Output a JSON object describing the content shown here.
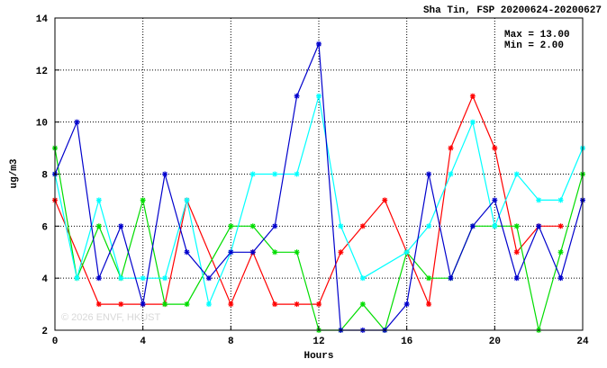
{
  "chart_data": {
    "type": "line",
    "title": "Sha Tin, FSP 20200624-20200627",
    "xlabel": "Hours",
    "ylabel": "ug/m3",
    "xlim": [
      0,
      24
    ],
    "ylim": [
      2,
      14
    ],
    "xticks": [
      0,
      4,
      8,
      12,
      16,
      20,
      24
    ],
    "yticks": [
      2,
      4,
      6,
      8,
      10,
      12,
      14
    ],
    "grid": true,
    "annotations": {
      "max": "Max = 13.00",
      "min": "Min =  2.00"
    },
    "watermark": "© 2026  ENVF, HKUST",
    "series": [
      {
        "color": "#ff0000",
        "x": [
          0,
          2,
          3,
          4,
          5,
          6,
          8,
          9,
          10,
          11,
          12,
          13,
          14,
          15,
          16,
          17,
          18,
          19,
          20,
          21,
          22,
          23
        ],
        "values": [
          7,
          3,
          3,
          3,
          3,
          7,
          3,
          5,
          3,
          3,
          3,
          5,
          6,
          7,
          5,
          3,
          9,
          11,
          9,
          5,
          6,
          6
        ]
      },
      {
        "color": "#00dd00",
        "x": [
          0,
          1,
          2,
          3,
          4,
          5,
          6,
          8,
          9,
          10,
          11,
          12,
          13,
          14,
          15,
          16,
          17,
          18,
          19,
          20,
          21,
          22,
          23,
          24
        ],
        "values": [
          9,
          4,
          6,
          4,
          7,
          3,
          3,
          6,
          6,
          5,
          5,
          2,
          2,
          3,
          2,
          5,
          4,
          4,
          6,
          6,
          6,
          2,
          5,
          8
        ]
      },
      {
        "color": "#00ffff",
        "x": [
          0,
          1,
          2,
          3,
          4,
          5,
          6,
          7,
          8,
          9,
          10,
          11,
          12,
          13,
          14,
          16,
          17,
          18,
          19,
          20,
          21,
          22,
          23,
          24
        ],
        "values": [
          8,
          4,
          7,
          4,
          4,
          4,
          7,
          3,
          5,
          8,
          8,
          8,
          11,
          6,
          4,
          5,
          6,
          8,
          10,
          6,
          8,
          7,
          7,
          9
        ]
      },
      {
        "color": "#0000cc",
        "x": [
          0,
          1,
          2,
          3,
          4,
          5,
          6,
          7,
          8,
          9,
          10,
          11,
          12,
          13,
          14,
          15,
          16,
          17,
          18,
          19,
          20,
          21,
          22,
          23,
          24
        ],
        "values": [
          8,
          10,
          4,
          6,
          3,
          8,
          5,
          4,
          5,
          5,
          6,
          11,
          13,
          2,
          2,
          2,
          3,
          8,
          4,
          6,
          7,
          4,
          6,
          4,
          7
        ]
      }
    ]
  }
}
